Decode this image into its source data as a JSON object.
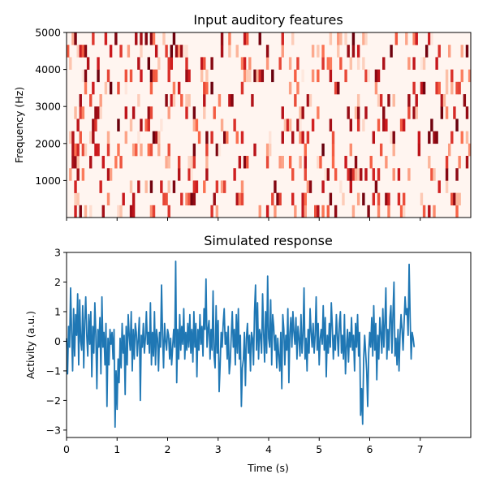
{
  "chart_data": [
    {
      "type": "heatmap",
      "title": "Input auditory features",
      "xlabel": "",
      "ylabel": "Frequency (Hz)",
      "xlim": [
        0,
        8
      ],
      "ylim": [
        0,
        5000
      ],
      "yticks": [
        "1000",
        "2000",
        "3000",
        "4000",
        "5000"
      ],
      "xticks_unlabeled": [
        0,
        1,
        2,
        3,
        4,
        5,
        6,
        7
      ],
      "colormap": "Reds",
      "n_freq_bins": 15,
      "n_time_frames": 160,
      "random_seed": 7,
      "sharex_with": "Simulated response"
    },
    {
      "type": "line",
      "title": "Simulated response",
      "xlabel": "Time (s)",
      "ylabel": "Activity (a.u.)",
      "xlim": [
        0,
        8
      ],
      "ylim": [
        -3.25,
        3.0
      ],
      "xticks": [
        "0",
        "1",
        "2",
        "3",
        "4",
        "5",
        "6",
        "7"
      ],
      "yticks": [
        "−3",
        "−2",
        "−1",
        "0",
        "1",
        "2",
        "3"
      ],
      "line_color": "#1f77b4",
      "series": [
        {
          "x_step": 0.02,
          "values": [
            0.1,
            -1.1,
            0.5,
            -0.2,
            1.8,
            0.3,
            -1.0,
            1.1,
            -0.5,
            0.9,
            0.2,
            1.6,
            -0.8,
            1.4,
            0.0,
            -0.3,
            1.2,
            -0.9,
            0.7,
            1.5,
            0.2,
            -0.5,
            0.9,
            -0.1,
            1.0,
            -1.2,
            0.5,
            -0.4,
            1.3,
            0.2,
            -1.6,
            0.4,
            -0.2,
            0.8,
            -1.1,
            1.5,
            -0.2,
            0.3,
            -0.8,
            0.6,
            -2.2,
            0.1,
            -0.8,
            0.4,
            -0.1,
            0.3,
            -0.6,
            0.4,
            -2.9,
            -1.0,
            -2.3,
            -0.6,
            -1.4,
            0.1,
            -0.9,
            0.6,
            -0.4,
            0.2,
            -1.8,
            0.5,
            -0.8,
            0.9,
            0.2,
            -0.3,
            1.0,
            -1.0,
            0.4,
            -0.6,
            0.6,
            0.3,
            -0.5,
            0.1,
            0.8,
            -2.0,
            0.2,
            -0.2,
            0.6,
            -0.4,
            0.1,
            1.0,
            -0.1,
            0.3,
            -0.4,
            1.3,
            -0.8,
            0.3,
            -0.5,
            1.0,
            -0.8,
            0.4,
            0.1,
            -1.0,
            0.3,
            -0.2,
            1.9,
            0.2,
            -0.9,
            0.6,
            0.0,
            -0.3,
            0.4,
            0.2,
            -0.6,
            0.1,
            -0.8,
            -0.2,
            0.4,
            -0.2,
            2.7,
            -1.4,
            0.4,
            -0.6,
            0.9,
            -0.3,
            0.5,
            -0.1,
            1.1,
            -0.6,
            0.3,
            -0.3,
            0.6,
            -0.2,
            0.9,
            -0.4,
            0.4,
            -0.7,
            1.0,
            -0.2,
            0.6,
            -1.2,
            0.4,
            -0.3,
            0.9,
            -0.1,
            0.5,
            -0.5,
            1.1,
            0.4,
            2.1,
            -0.2,
            0.4,
            0.7,
            -0.6,
            0.4,
            -0.3,
            1.7,
            -0.5,
            -0.9,
            1.2,
            -0.4,
            0.7,
            -1.7,
            -0.8,
            0.3,
            -0.2,
            0.6,
            1.1,
            -0.1,
            0.3,
            -0.6,
            0.5,
            -1.1,
            -0.7,
            0.2,
            1.0,
            -0.2,
            0.4,
            -0.8,
            0.9,
            -0.4,
            1.1,
            -0.6,
            0.2,
            -2.2,
            -0.9,
            -0.6,
            0.3,
            -1.5,
            0.1,
            0.6,
            -0.4,
            0.2,
            -1.0,
            0.3,
            0.1,
            -0.8,
            1.0,
            1.9,
            -0.3,
            1.3,
            -0.6,
            0.4,
            0.2,
            -0.4,
            1.6,
            0.3,
            -0.7,
            1.0,
            -0.4,
            2.2,
            0.1,
            -0.2,
            1.4,
            -0.8,
            0.9,
            0.5,
            -0.3,
            0.2,
            -0.9,
            0.1,
            -0.5,
            -1.0,
            0.3,
            -1.6,
            0.9,
            0.4,
            -0.8,
            0.2,
            -0.3,
            1.1,
            -1.4,
            0.3,
            0.8,
            -0.2,
            1.0,
            0.3,
            -0.1,
            0.8,
            -0.6,
            0.5,
            0.1,
            -0.5,
            0.9,
            -0.4,
            0.2,
            1.8,
            -0.6,
            0.1,
            -1.0,
            0.4,
            -0.4,
            1.1,
            0.3,
            -0.2,
            0.6,
            -0.4,
            0.2,
            1.5,
            -0.3,
            0.6,
            -0.8,
            0.1,
            0.4,
            -0.1,
            1.2,
            -0.3,
            0.8,
            -1.2,
            0.2,
            -0.4,
            0.6,
            -0.2,
            1.3,
            0.5,
            -0.6,
            0.2,
            -0.3,
            0.9,
            0.2,
            -0.5,
            0.6,
            1.0,
            -0.4,
            0.2,
            -0.6,
            0.9,
            -1.1,
            -0.2,
            0.4,
            -0.7,
            0.3,
            -0.2,
            0.8,
            -0.3,
            0.2,
            -1.0,
            0.6,
            -0.2,
            0.9,
            -0.5,
            0.3,
            -2.5,
            -1.6,
            -2.8,
            -0.6,
            0.2,
            -0.4,
            -1.0,
            -2.2,
            -0.4,
            0.3,
            -0.2,
            0.8,
            -0.5,
            1.2,
            -0.3,
            0.6,
            -1.3,
            0.2,
            -0.6,
            0.8,
            0.3,
            -0.4,
            1.1,
            -0.2,
            0.6,
            1.8,
            -0.6,
            0.4,
            -0.3,
            0.8,
            1.2,
            -0.4,
            0.9,
            2.0,
            -0.5,
            0.1,
            -0.8,
            0.4,
            -1.0,
            0.2,
            0.9,
            0.4,
            -0.3,
            0.6,
            1.5,
            0.9,
            1.1,
            0.2,
            2.6,
            0.8,
            -0.6,
            0.3,
            0.1,
            -0.2
          ]
        }
      ]
    }
  ]
}
